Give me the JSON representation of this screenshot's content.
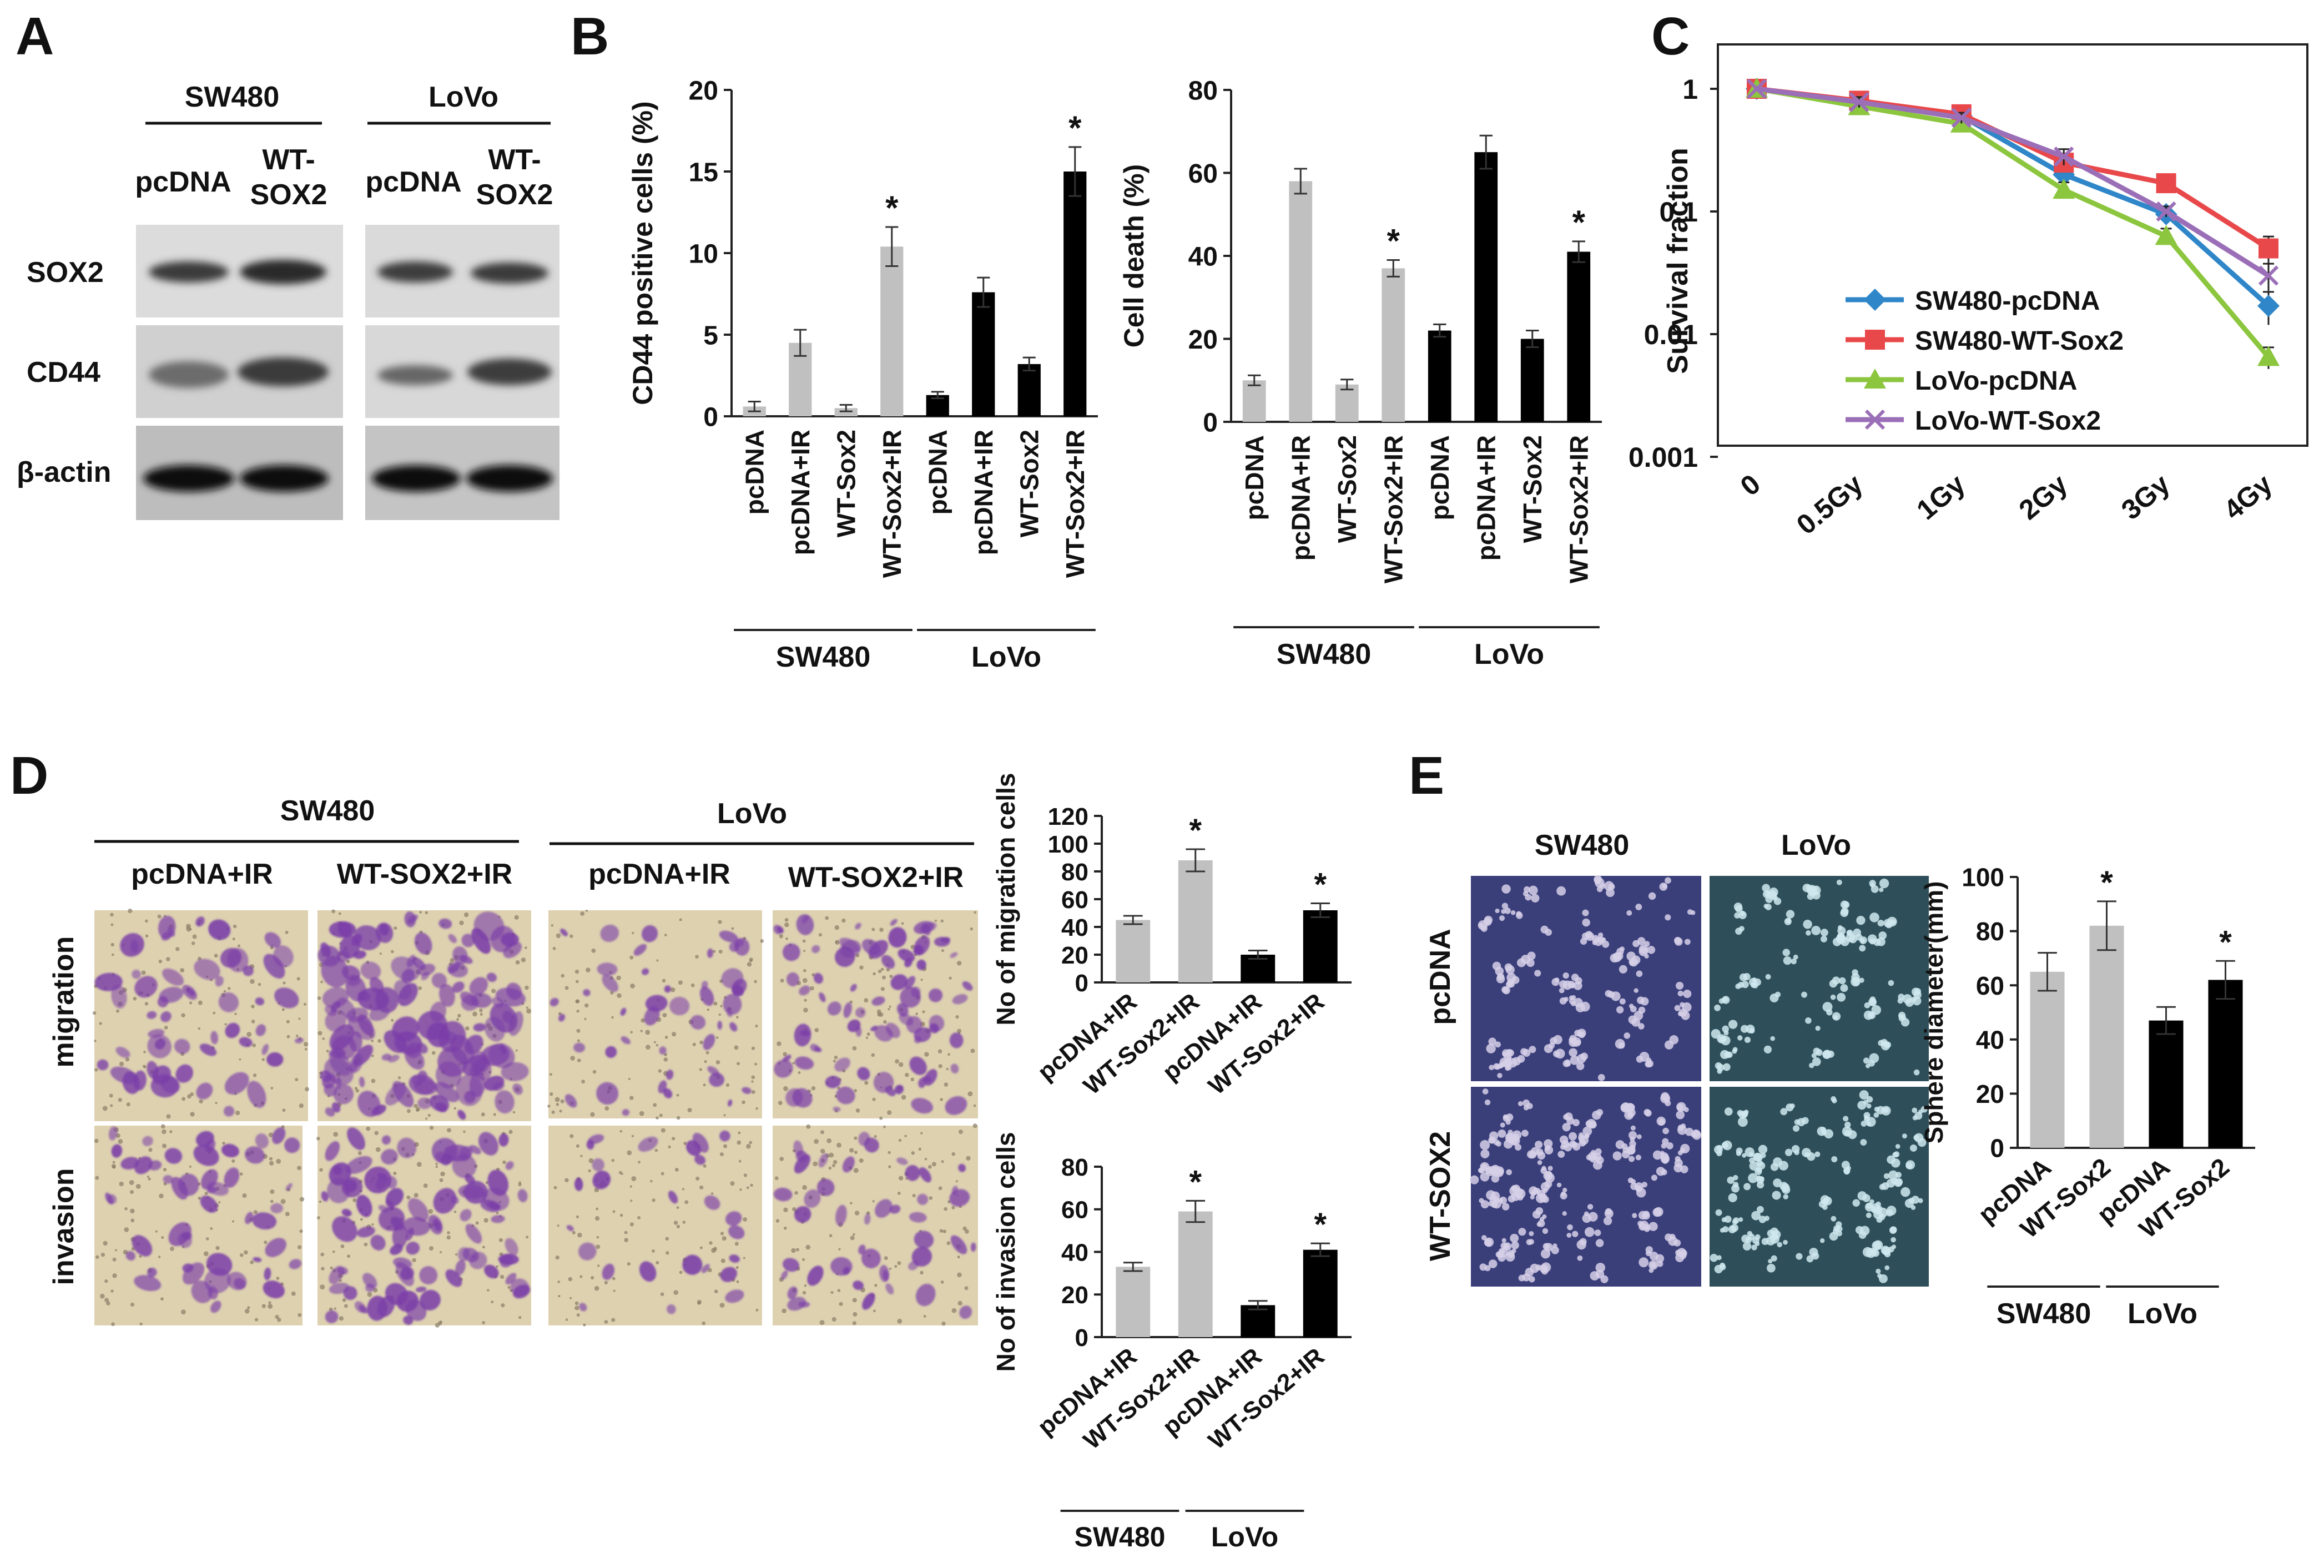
{
  "panels": {
    "a": {
      "letter": "A",
      "lines": [
        "SW480",
        "LoVo"
      ],
      "cols": [
        "pcDNA",
        "WT-",
        "SOX2",
        "pcDNA",
        "WT-",
        "SOX2"
      ],
      "rows": [
        "SOX2",
        "CD44",
        "β-actin"
      ]
    },
    "b": {
      "letter": "B"
    },
    "c": {
      "letter": "C"
    },
    "d": {
      "letter": "D",
      "lines": [
        "SW480",
        "LoVo"
      ],
      "cols": [
        "pcDNA+IR",
        "WT-SOX2+IR",
        "pcDNA+IR",
        "WT-SOX2+IR"
      ],
      "rows": [
        "migration",
        "invasion"
      ]
    },
    "e": {
      "letter": "E",
      "lines": [
        "SW480",
        "LoVo"
      ],
      "rows": [
        "pcDNA",
        "WT-SOX2"
      ]
    }
  },
  "colors": {
    "gray_bar": "#c0c0c0",
    "black_bar": "#000000",
    "sw480_pcdna": "#2f86c8",
    "sw480_wt": "#e8484a",
    "lovo_pcdna": "#8cc63e",
    "lovo_wt": "#9b6fb8",
    "stain_purple": "#7b3fa8",
    "sphere_bg": "#3a3f7a"
  },
  "chart_data": [
    {
      "type": "bar",
      "ylabel": "CD44 positive cells (%)",
      "ylim": [
        0,
        20
      ],
      "yticks": [
        "0",
        "5",
        "10",
        "15",
        "20"
      ],
      "categories": [
        "pcDNA",
        "pcDNA+IR",
        "WT-Sox2",
        "WT-Sox2+IR",
        "pcDNA",
        "pcDNA+IR",
        "WT-Sox2",
        "WT-Sox2+IR"
      ],
      "values": [
        0.6,
        4.5,
        0.5,
        10.4,
        1.3,
        7.6,
        3.2,
        15.0
      ],
      "errors": [
        0.3,
        0.8,
        0.2,
        1.2,
        0.2,
        0.9,
        0.4,
        1.5
      ],
      "colors": [
        "gray",
        "gray",
        "gray",
        "gray",
        "black",
        "black",
        "black",
        "black"
      ],
      "stars": [
        "",
        "",
        "",
        "*",
        "",
        "",
        "",
        "*"
      ],
      "groups": [
        "SW480",
        "LoVo"
      ],
      "grid": false
    },
    {
      "type": "bar",
      "ylabel": "Cell death (%)",
      "ylim": [
        0,
        80
      ],
      "yticks": [
        "0",
        "20",
        "40",
        "60",
        "80"
      ],
      "categories": [
        "pcDNA",
        "pcDNA+IR",
        "WT-Sox2",
        "WT-Sox2+IR",
        "pcDNA",
        "pcDNA+IR",
        "WT-Sox2",
        "WT-Sox2+IR"
      ],
      "values": [
        10,
        58,
        9,
        37,
        22,
        65,
        20,
        41
      ],
      "errors": [
        1.2,
        3.0,
        1.2,
        2.0,
        1.5,
        4.0,
        2.0,
        2.5
      ],
      "colors": [
        "gray",
        "gray",
        "gray",
        "gray",
        "black",
        "black",
        "black",
        "black"
      ],
      "stars": [
        "",
        "",
        "",
        "*",
        "",
        "",
        "",
        "*"
      ],
      "groups": [
        "SW480",
        "LoVo"
      ],
      "grid": false
    },
    {
      "type": "line",
      "ylabel": "Survival fraction",
      "yscale": "log",
      "ylim": [
        0.001,
        1
      ],
      "yticks": [
        "0.001",
        "0.01",
        "0.1",
        "1"
      ],
      "x": [
        "0",
        "0.5Gy",
        "1Gy",
        "2Gy",
        "3Gy",
        "4Gy"
      ],
      "series": [
        {
          "name": "SW480-pcDNA",
          "values": [
            1,
            0.75,
            0.6,
            0.2,
            0.095,
            0.017
          ],
          "errors_rel": [
            0,
            0.1,
            0.1,
            0.15,
            0.1,
            0.3
          ],
          "marker": "diamond",
          "color_key": "sw480_pcdna"
        },
        {
          "name": "SW480-WT-Sox2",
          "values": [
            1,
            0.8,
            0.62,
            0.25,
            0.17,
            0.05
          ],
          "errors_rel": [
            0,
            0.1,
            0.1,
            0.15,
            0.1,
            0.25
          ],
          "marker": "square",
          "color_key": "sw480_wt"
        },
        {
          "name": "LoVo-pcDNA",
          "values": [
            1,
            0.72,
            0.52,
            0.15,
            0.063,
            0.0065
          ],
          "errors_rel": [
            0,
            0.1,
            0.1,
            0.15,
            0.15,
            0.2
          ],
          "marker": "triangle",
          "color_key": "lovo_pcdna"
        },
        {
          "name": "LoVo-WT-Sox2",
          "values": [
            1,
            0.78,
            0.58,
            0.28,
            0.1,
            0.03
          ],
          "errors_rel": [
            0,
            0.1,
            0.1,
            0.15,
            0.1,
            0.25
          ],
          "marker": "x",
          "color_key": "lovo_wt"
        }
      ],
      "legend": "lower-left",
      "grid": false
    },
    {
      "type": "bar",
      "ylabel": "No of  migration cells",
      "ylim": [
        0,
        120
      ],
      "yticks": [
        "0",
        "20",
        "40",
        "60",
        "80",
        "100",
        "120"
      ],
      "categories": [
        "pcDNA+IR",
        "WT-Sox2+IR",
        "pcDNA+IR",
        "WT-Sox2+IR"
      ],
      "values": [
        45,
        88,
        20,
        52
      ],
      "errors": [
        3,
        8,
        3,
        5
      ],
      "colors": [
        "gray",
        "gray",
        "black",
        "black"
      ],
      "stars": [
        "",
        "*",
        "",
        "*"
      ],
      "groups": [],
      "grid": false
    },
    {
      "type": "bar",
      "ylabel": "No of  invasion cells",
      "ylim": [
        0,
        80
      ],
      "yticks": [
        "0",
        "20",
        "40",
        "60",
        "80"
      ],
      "categories": [
        "pcDNA+IR",
        "WT-Sox2+IR",
        "pcDNA+IR",
        "WT-Sox2+IR"
      ],
      "values": [
        33,
        59,
        15,
        41
      ],
      "errors": [
        2,
        5,
        2,
        3
      ],
      "colors": [
        "gray",
        "gray",
        "black",
        "black"
      ],
      "stars": [
        "",
        "*",
        "",
        "*"
      ],
      "groups": [
        "SW480",
        "LoVo"
      ],
      "grid": false
    },
    {
      "type": "bar",
      "ylabel": "Sphere diameter(mm)",
      "ylim": [
        0,
        100
      ],
      "yticks": [
        "0",
        "20",
        "40",
        "60",
        "80",
        "100"
      ],
      "categories": [
        "pcDNA",
        "WT-Sox2",
        "pcDNA",
        "WT-Sox2"
      ],
      "values": [
        65,
        82,
        47,
        62
      ],
      "errors": [
        7,
        9,
        5,
        7
      ],
      "colors": [
        "gray",
        "gray",
        "black",
        "black"
      ],
      "stars": [
        "",
        "*",
        "",
        "*"
      ],
      "groups": [
        "SW480",
        "LoVo"
      ],
      "grid": false
    }
  ]
}
